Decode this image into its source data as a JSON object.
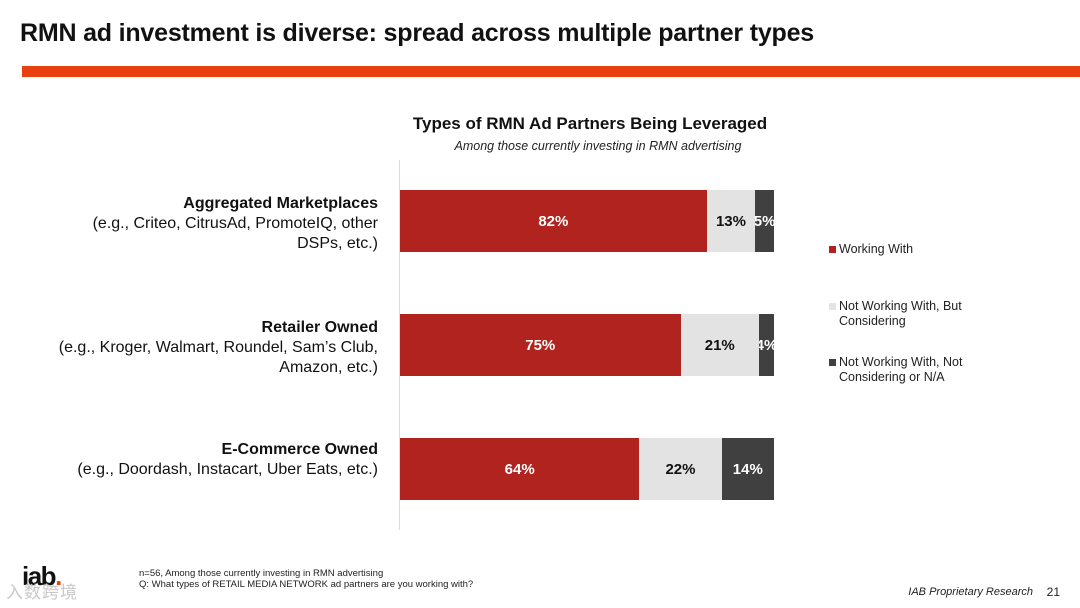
{
  "slide": {
    "title": "RMN ad investment is diverse: spread across multiple partner types",
    "accent_color": "#e8410f",
    "source_note": "IAB Proprietary Research",
    "page_number": "21",
    "logo_text": "iab",
    "logo_dot": ".",
    "watermark": "入数跨境"
  },
  "footnote": {
    "line1": "n=56, Among those currently investing in RMN advertising",
    "line2": "Q: What types of RETAIL MEDIA NETWORK ad partners are you working with?"
  },
  "chart_data": {
    "type": "bar",
    "orientation": "horizontal",
    "stacked": true,
    "title": "Types of RMN Ad Partners Being Leveraged",
    "subtitle": "Among those currently investing in RMN advertising",
    "xlim": [
      0,
      100
    ],
    "legend_position": "right",
    "categories": [
      {
        "name": "Aggregated Marketplaces",
        "desc": "(e.g., Criteo, CitrusAd, PromoteIQ, other DSPs, etc.)"
      },
      {
        "name": "Retailer Owned",
        "desc": "(e.g., Kroger, Walmart, Roundel, Sam’s Club, Amazon, etc.)"
      },
      {
        "name": "E-Commerce Owned",
        "desc": "(e.g., Doordash, Instacart, Uber Eats, etc.)"
      }
    ],
    "series": [
      {
        "name": "Working With",
        "color": "#b0231e",
        "text_color": "#ffffff",
        "values": [
          82,
          75,
          64
        ],
        "labels": [
          "82%",
          "75%",
          "64%"
        ]
      },
      {
        "name": "Not Working With, But Considering",
        "color": "#e3e3e3",
        "text_color": "#111111",
        "values": [
          13,
          21,
          22
        ],
        "labels": [
          "13%",
          "21%",
          "22%"
        ]
      },
      {
        "name": "Not Working With, Not Considering or N/A",
        "color": "#404040",
        "text_color": "#ffffff",
        "values": [
          5,
          4,
          14
        ],
        "labels": [
          "5%",
          "4%",
          "14%"
        ]
      }
    ]
  }
}
